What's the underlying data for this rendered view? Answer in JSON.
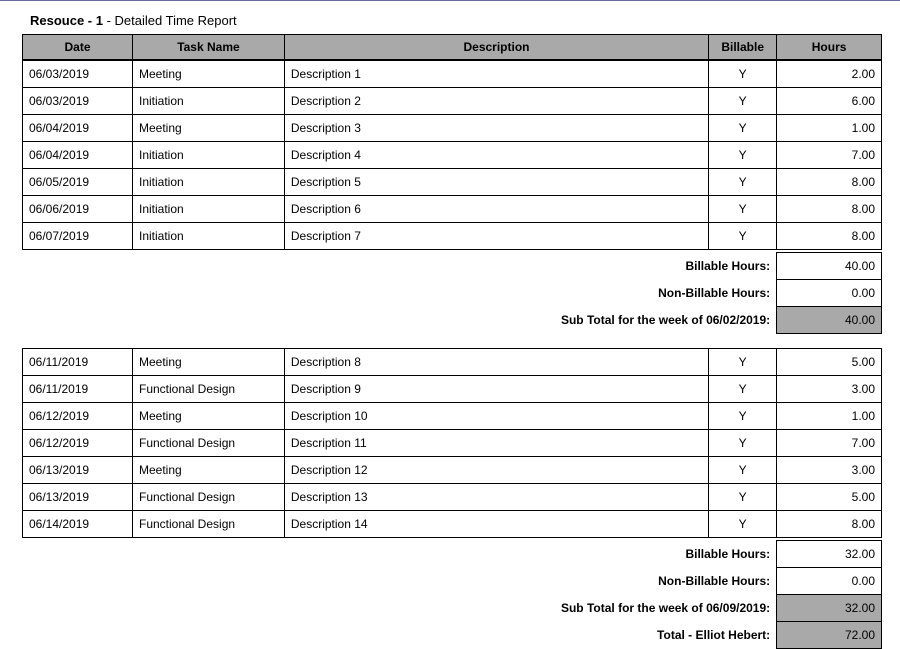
{
  "title_prefix": "Resouce - 1",
  "title_suffix": " - Detailed Time Report",
  "columns": {
    "date": "Date",
    "task": "Task Name",
    "desc": "Description",
    "bill": "Billable",
    "hours": "Hours"
  },
  "weeks": [
    {
      "rows": [
        {
          "date": "06/03/2019",
          "task": "Meeting",
          "desc": "Description 1",
          "bill": "Y",
          "hours": "2.00"
        },
        {
          "date": "06/03/2019",
          "task": "Initiation",
          "desc": "Description 2",
          "bill": "Y",
          "hours": "6.00"
        },
        {
          "date": "06/04/2019",
          "task": "Meeting",
          "desc": "Description 3",
          "bill": "Y",
          "hours": "1.00"
        },
        {
          "date": "06/04/2019",
          "task": "Initiation",
          "desc": "Description 4",
          "bill": "Y",
          "hours": "7.00"
        },
        {
          "date": "06/05/2019",
          "task": "Initiation",
          "desc": "Description 5",
          "bill": "Y",
          "hours": "8.00"
        },
        {
          "date": "06/06/2019",
          "task": "Initiation",
          "desc": "Description 6",
          "bill": "Y",
          "hours": "8.00"
        },
        {
          "date": "06/07/2019",
          "task": "Initiation",
          "desc": "Description 7",
          "bill": "Y",
          "hours": "8.00"
        }
      ],
      "summary": [
        {
          "label": "Billable Hours:",
          "value": "40.00",
          "shaded": false
        },
        {
          "label": "Non-Billable Hours:",
          "value": "0.00",
          "shaded": false
        },
        {
          "label": "Sub Total for the week of 06/02/2019:",
          "value": "40.00",
          "shaded": true
        }
      ]
    },
    {
      "rows": [
        {
          "date": "06/11/2019",
          "task": "Meeting",
          "desc": "Description 8",
          "bill": "Y",
          "hours": "5.00"
        },
        {
          "date": "06/11/2019",
          "task": "Functional Design",
          "desc": "Description 9",
          "bill": "Y",
          "hours": "3.00"
        },
        {
          "date": "06/12/2019",
          "task": "Meeting",
          "desc": "Description 10",
          "bill": "Y",
          "hours": "1.00"
        },
        {
          "date": "06/12/2019",
          "task": "Functional Design",
          "desc": "Description 11",
          "bill": "Y",
          "hours": "7.00"
        },
        {
          "date": "06/13/2019",
          "task": "Meeting",
          "desc": "Description 12",
          "bill": "Y",
          "hours": "3.00"
        },
        {
          "date": "06/13/2019",
          "task": "Functional Design",
          "desc": "Description 13",
          "bill": "Y",
          "hours": "5.00"
        },
        {
          "date": "06/14/2019",
          "task": "Functional Design",
          "desc": "Description 14",
          "bill": "Y",
          "hours": "8.00"
        }
      ],
      "summary": [
        {
          "label": "Billable Hours:",
          "value": "32.00",
          "shaded": false
        },
        {
          "label": "Non-Billable Hours:",
          "value": "0.00",
          "shaded": false
        },
        {
          "label": "Sub Total for the week of 06/09/2019:",
          "value": "32.00",
          "shaded": true
        },
        {
          "label": "Total - Elliot Hebert:",
          "value": "72.00",
          "shaded": true
        }
      ]
    }
  ]
}
